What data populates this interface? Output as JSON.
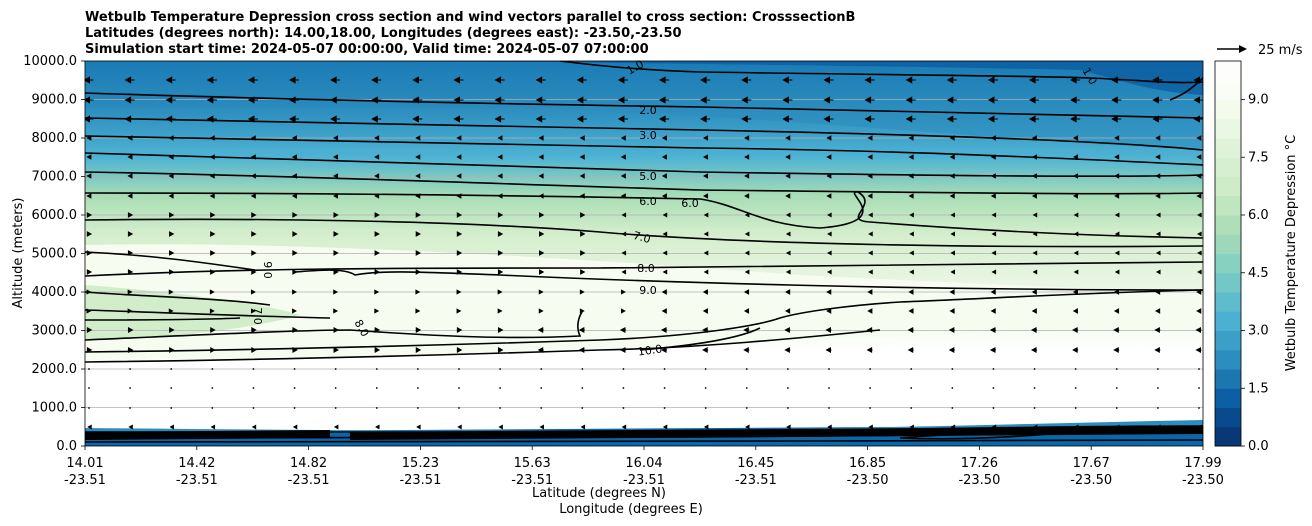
{
  "chart_data": {
    "type": "filled-contour",
    "title_lines": [
      "Wetbulb Temperature Depression cross section and wind vectors parallel to cross section: CrosssectionB",
      "Latitudes (degrees north): 14.00,18.00, Longitudes (degrees east): -23.50,-23.50",
      "Simulation start time: 2024-05-07 00:00:00, Valid time: 2024-05-07 07:00:00"
    ],
    "xlabel_lat": "Latitude (degrees N)",
    "xlabel_lon": "Longitude (degrees E)",
    "ylabel": "Altitude (meters)",
    "ylim": [
      0,
      10000
    ],
    "yticks": [
      0,
      1000,
      2000,
      3000,
      4000,
      5000,
      6000,
      7000,
      8000,
      9000,
      10000
    ],
    "ytick_labels": [
      "0.0",
      "1000.0",
      "2000.0",
      "3000.0",
      "4000.0",
      "5000.0",
      "6000.0",
      "7000.0",
      "8000.0",
      "9000.0",
      "10000.0"
    ],
    "xlim": [
      14.01,
      17.99
    ],
    "x_ticks": [
      {
        "lat": "14.01",
        "lon": "-23.51"
      },
      {
        "lat": "14.42",
        "lon": "-23.51"
      },
      {
        "lat": "14.82",
        "lon": "-23.51"
      },
      {
        "lat": "15.23",
        "lon": "-23.51"
      },
      {
        "lat": "15.63",
        "lon": "-23.51"
      },
      {
        "lat": "16.04",
        "lon": "-23.51"
      },
      {
        "lat": "16.45",
        "lon": "-23.51"
      },
      {
        "lat": "16.85",
        "lon": "-23.50"
      },
      {
        "lat": "17.26",
        "lon": "-23.50"
      },
      {
        "lat": "17.67",
        "lon": "-23.50"
      },
      {
        "lat": "17.99",
        "lon": "-23.50"
      }
    ],
    "colorbar": {
      "label": "Wetbulb Temperature Depression °C",
      "range": [
        0,
        10
      ],
      "ticks": [
        "0.0",
        "1.5",
        "3.0",
        "4.5",
        "6.0",
        "7.5",
        "9.0"
      ],
      "tick_values": [
        0,
        1.5,
        3.0,
        4.5,
        6.0,
        7.5,
        9.0
      ],
      "colormap": "GnBu_r",
      "colors": [
        "#08306b",
        "#08589e",
        "#2b8cbe",
        "#4eb3d3",
        "#7bccc4",
        "#a8ddb5",
        "#ccebc5",
        "#e0f3db",
        "#f7fcf0",
        "#ffffff"
      ]
    },
    "quiver_key": "25 m/s",
    "contour_labels": [
      "1.0",
      "2.0",
      "3.0",
      "5.0",
      "6.0",
      "6.0",
      "7.0",
      "8.0",
      "9.0",
      "10.0",
      "9.0",
      "7.0",
      "8.0",
      "1.0"
    ],
    "contour_levels": [
      {
        "level": 1.0,
        "alt_m": 9700
      },
      {
        "level": 2.0,
        "alt_m": 9000
      },
      {
        "level": 3.0,
        "alt_m": 8100
      },
      {
        "level": 5.0,
        "alt_m": 7000
      },
      {
        "level": 6.0,
        "alt_m": 6300
      },
      {
        "level": 7.0,
        "alt_m": 5500
      },
      {
        "level": 8.0,
        "alt_m": 4700
      },
      {
        "level": 9.0,
        "alt_m": 4300
      },
      {
        "level": 10.0,
        "alt_m": 2600
      }
    ],
    "grid": "horizontal"
  }
}
